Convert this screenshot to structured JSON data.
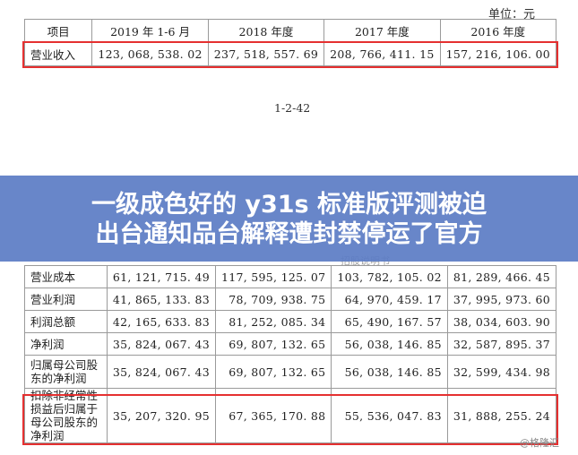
{
  "unit_label": "单位：元",
  "top_table": {
    "headers": [
      "项目",
      "2019 年 1-6 月",
      "2018 年度",
      "2017 年度",
      "2016 年度"
    ],
    "row": [
      "营业收入",
      "123, 068, 538. 02",
      "237, 518, 557. 69",
      "208, 766, 411. 15",
      "157, 216, 106. 00"
    ]
  },
  "page_number": "1-2-42",
  "overlay": {
    "line1": "一级成色好的 y31s 标准版评测被迫",
    "line2": "出台通知品台解释遭封禁停运了官方",
    "faint_text": "招股说明书"
  },
  "bottom_table": {
    "rows": [
      [
        "营业成本",
        "61, 121, 715. 49",
        "117, 595, 125. 07",
        "103, 782, 105. 02",
        "81, 289, 466. 45"
      ],
      [
        "营业利润",
        "41, 865, 133. 83",
        "78, 709, 938. 75",
        "64, 970, 459. 17",
        "37, 995, 973. 60"
      ],
      [
        "利润总额",
        "42, 165, 633. 83",
        "81, 252, 085. 34",
        "65, 490, 167. 57",
        "38, 034, 603. 90"
      ],
      [
        "净利润",
        "35, 824, 067. 43",
        "69, 807, 132. 65",
        "56, 038, 146. 85",
        "32, 587, 895. 37"
      ],
      [
        "归属母公司股东的净利润",
        "35, 824, 067. 43",
        "69, 807, 132. 65",
        "56, 038, 146. 85",
        "32, 599, 434. 98"
      ],
      [
        "扣除非经常性损益后归属于母公司股东的净利润",
        "35, 207, 320. 95",
        "67, 365, 170. 88",
        "55, 536, 047. 83",
        "31, 888, 255. 24"
      ]
    ]
  },
  "watermark": "@格隆汇",
  "colors": {
    "highlight_box": "#e53030",
    "banner": "#5b7cc4",
    "banner_text": "#ffffff"
  }
}
